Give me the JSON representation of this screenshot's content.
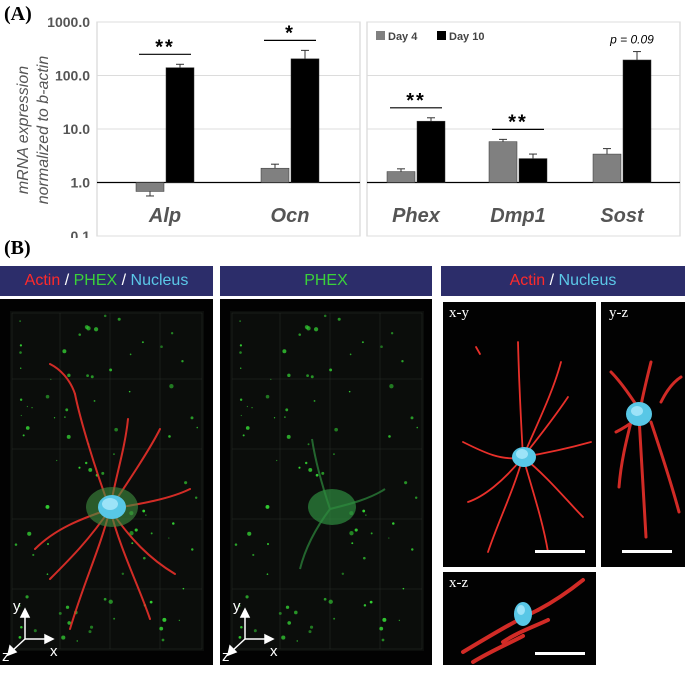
{
  "panel_a": {
    "label": "(A)",
    "chart_data": {
      "type": "bar",
      "log_scale": true,
      "ylim": [
        0.1,
        1000
      ],
      "yticks": [
        "1000.0",
        "100.0",
        "10.0",
        "1.0",
        "0.1"
      ],
      "ylabel_line1": "mRNA expression",
      "ylabel_line2": "normalized to b-actin",
      "groups": [
        {
          "gene": "Alp",
          "values": [
            0.68,
            140
          ],
          "errors": [
            0.12,
            22
          ],
          "sig": "**",
          "panel": 1
        },
        {
          "gene": "Ocn",
          "values": [
            1.85,
            205
          ],
          "errors": [
            0.35,
            90
          ],
          "sig": "*",
          "panel": 1
        },
        {
          "gene": "Phex",
          "values": [
            1.6,
            14.0
          ],
          "errors": [
            0.2,
            2.2
          ],
          "sig": "**",
          "panel": 2
        },
        {
          "gene": "Dmp1",
          "values": [
            5.8,
            2.8
          ],
          "errors": [
            0.6,
            0.6
          ],
          "sig": "**",
          "panel": 2
        },
        {
          "gene": "Sost",
          "values": [
            3.4,
            195
          ],
          "errors": [
            0.9,
            85
          ],
          "sig": "p = 0.09",
          "panel": 2
        }
      ],
      "series": [
        {
          "name": "Day 4",
          "color": "#808080"
        },
        {
          "name": "Day 10",
          "color": "#000000"
        }
      ],
      "legend_position": "top-left of right panel"
    }
  },
  "panel_b": {
    "label": "(B)",
    "headers": {
      "merged": {
        "actin": "Actin",
        "sep1": " / ",
        "phex": "PHEX",
        "sep2": " / ",
        "nucleus": "Nucleus"
      },
      "phex_only": "PHEX",
      "actin_nucleus": {
        "actin": "Actin",
        "sep": " / ",
        "nucleus": "Nucleus"
      }
    },
    "views": {
      "xy": "x-y",
      "yz": "y-z",
      "xz": "x-z"
    },
    "axes": {
      "y": "y",
      "x": "x",
      "z": "z"
    },
    "colors": {
      "actin": "#ff2a2a",
      "phex": "#3ad13a",
      "nucleus": "#5bc8e8",
      "header_bg": "#2c2d6a"
    }
  }
}
